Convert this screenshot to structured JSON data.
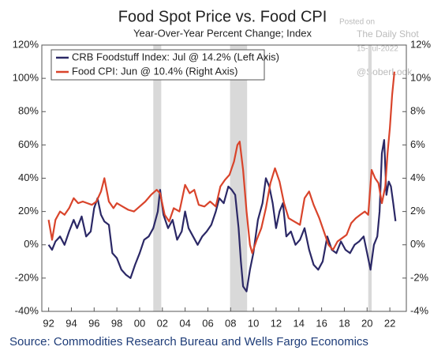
{
  "chart_data": {
    "type": "line",
    "title": "Food Spot Price vs. Food CPI",
    "subtitle": "Year-Over-Year Percent Change; Index",
    "source": "Source: Commodities Research Bureau and Wells Fargo Economics",
    "watermark": [
      "Posted on",
      "The Daily Shot",
      "15-Jul-2022",
      "@SoberLook"
    ],
    "xlim": [
      1991.4,
      2023.45
    ],
    "xticks": [
      {
        "value": 1992,
        "label": "92"
      },
      {
        "value": 1994,
        "label": "94"
      },
      {
        "value": 1996,
        "label": "96"
      },
      {
        "value": 1998,
        "label": "98"
      },
      {
        "value": 2000,
        "label": "00"
      },
      {
        "value": 2002,
        "label": "02"
      },
      {
        "value": 2004,
        "label": "04"
      },
      {
        "value": 2006,
        "label": "06"
      },
      {
        "value": 2008,
        "label": "08"
      },
      {
        "value": 2010,
        "label": "10"
      },
      {
        "value": 2012,
        "label": "12"
      },
      {
        "value": 2014,
        "label": "14"
      },
      {
        "value": 2016,
        "label": "16"
      },
      {
        "value": 2018,
        "label": "18"
      },
      {
        "value": 2020,
        "label": "20"
      },
      {
        "value": 2022,
        "label": "22"
      }
    ],
    "ylim": [
      -40,
      120
    ],
    "yticks": [
      {
        "value": -40,
        "label": "-40%"
      },
      {
        "value": -20,
        "label": "-20%"
      },
      {
        "value": 0,
        "label": "0%"
      },
      {
        "value": 20,
        "label": "20%"
      },
      {
        "value": 40,
        "label": "40%"
      },
      {
        "value": 60,
        "label": "60%"
      },
      {
        "value": 80,
        "label": "80%"
      },
      {
        "value": 100,
        "label": "100%"
      },
      {
        "value": 120,
        "label": "120%"
      }
    ],
    "y2lim": [
      -4,
      12
    ],
    "y2ticks": [
      {
        "value": -4,
        "label": "-4%"
      },
      {
        "value": -2,
        "label": "-2%"
      },
      {
        "value": 0,
        "label": "0%"
      },
      {
        "value": 2,
        "label": "2%"
      },
      {
        "value": 4,
        "label": "4%"
      },
      {
        "value": 6,
        "label": "6%"
      },
      {
        "value": 8,
        "label": "8%"
      },
      {
        "value": 10,
        "label": "10%"
      },
      {
        "value": 12,
        "label": "12%"
      }
    ],
    "shaded_regions": [
      [
        2001.2,
        2001.9
      ],
      [
        2007.95,
        2009.45
      ],
      [
        2020.1,
        2020.4
      ]
    ],
    "shade_color": "#d9d9d9",
    "legend": "upper left",
    "series": [
      {
        "name": "CRB Foodstuff Index: Jul @ 14.2% (Left Axis)",
        "color": "#2b2866",
        "axis": "y",
        "x": [
          1992,
          1992.3,
          1992.6,
          1993,
          1993.4,
          1993.8,
          1994.2,
          1994.5,
          1994.9,
          1995.3,
          1995.7,
          1996,
          1996.3,
          1996.6,
          1996.9,
          1997.3,
          1997.6,
          1998,
          1998.4,
          1998.8,
          1999.2,
          1999.6,
          2000,
          2000.4,
          2000.8,
          2001.2,
          2001.6,
          2001.8,
          2002.1,
          2002.5,
          2002.9,
          2003.3,
          2003.7,
          2004,
          2004.3,
          2004.7,
          2005.1,
          2005.5,
          2005.9,
          2006.3,
          2006.7,
          2007,
          2007.4,
          2007.8,
          2008.1,
          2008.4,
          2008.7,
          2008.9,
          2009.1,
          2009.4,
          2009.7,
          2010,
          2010.4,
          2010.8,
          2011.1,
          2011.4,
          2011.7,
          2012,
          2012.3,
          2012.6,
          2012.9,
          2013.3,
          2013.7,
          2014.1,
          2014.5,
          2014.9,
          2015.3,
          2015.7,
          2016.1,
          2016.5,
          2016.9,
          2017.3,
          2017.7,
          2018.1,
          2018.5,
          2018.9,
          2019.3,
          2019.7,
          2020.0,
          2020.3,
          2020.6,
          2020.9,
          2021.1,
          2021.3,
          2021.5,
          2021.7,
          2021.9,
          2022.1,
          2022.3,
          2022.5
        ],
        "values": [
          0,
          -3,
          2,
          5,
          0,
          8,
          15,
          10,
          17,
          5,
          8,
          22,
          28,
          18,
          14,
          12,
          -5,
          -8,
          -15,
          -18,
          -20,
          -12,
          -5,
          3,
          5,
          10,
          20,
          33,
          18,
          10,
          15,
          3,
          8,
          20,
          10,
          5,
          0,
          5,
          8,
          12,
          20,
          28,
          25,
          35,
          33,
          30,
          10,
          -10,
          -25,
          -28,
          -15,
          -5,
          15,
          25,
          40,
          35,
          25,
          10,
          20,
          25,
          5,
          8,
          0,
          3,
          10,
          -3,
          -12,
          -15,
          -10,
          5,
          -3,
          -5,
          2,
          -3,
          -5,
          0,
          2,
          5,
          -5,
          -15,
          0,
          5,
          20,
          55,
          63,
          30,
          38,
          35,
          25,
          14.2
        ]
      },
      {
        "name": "Food CPI: Jun @ 10.4% (Right Axis)",
        "color": "#d9442b",
        "axis": "y2",
        "x": [
          1992,
          1992.3,
          1992.6,
          1993,
          1993.4,
          1993.8,
          1994.2,
          1994.6,
          1995,
          1995.4,
          1995.8,
          1996.2,
          1996.6,
          1996.9,
          1997.3,
          1997.7,
          1998,
          1998.5,
          1999,
          1999.5,
          2000,
          2000.5,
          2001,
          2001.5,
          2001.8,
          2002.2,
          2002.6,
          2003,
          2003.5,
          2004,
          2004.4,
          2004.8,
          2005.2,
          2005.7,
          2006.2,
          2006.7,
          2007.1,
          2007.5,
          2007.9,
          2008.3,
          2008.6,
          2008.8,
          2009.1,
          2009.4,
          2009.7,
          2009.9,
          2010.3,
          2010.7,
          2011.1,
          2011.5,
          2011.9,
          2012.3,
          2012.7,
          2013.1,
          2013.6,
          2014.1,
          2014.5,
          2014.9,
          2015.3,
          2015.8,
          2016.2,
          2016.6,
          2017,
          2017.4,
          2017.8,
          2018.2,
          2018.6,
          2019,
          2019.4,
          2019.8,
          2020.1,
          2020.4,
          2020.7,
          2021,
          2021.3,
          2021.6,
          2021.8,
          2022,
          2022.2,
          2022.4
        ],
        "values": [
          1.5,
          0.3,
          1.5,
          2,
          1.8,
          2.2,
          2.8,
          2.5,
          2.6,
          2.5,
          2.4,
          2.6,
          3.2,
          4,
          2.6,
          2.2,
          2.5,
          2.3,
          2.1,
          2,
          2.3,
          2.6,
          3,
          3.3,
          3.1,
          1.8,
          1.4,
          2.2,
          2,
          3.6,
          3.1,
          3.3,
          2.4,
          2.3,
          2.6,
          2.3,
          3.5,
          3.9,
          4.2,
          5,
          6,
          6.2,
          4.5,
          2,
          0,
          -0.5,
          0.3,
          1,
          2.2,
          3.7,
          4.6,
          3.8,
          2.5,
          1.6,
          1.4,
          1.2,
          2.8,
          3.2,
          2.4,
          1.6,
          0.8,
          0,
          -0.3,
          0.2,
          0.4,
          0.6,
          1.3,
          1.6,
          1.8,
          2,
          1.8,
          4.5,
          4,
          3.7,
          2.5,
          3.5,
          5.5,
          7,
          9,
          10.4
        ]
      }
    ]
  }
}
